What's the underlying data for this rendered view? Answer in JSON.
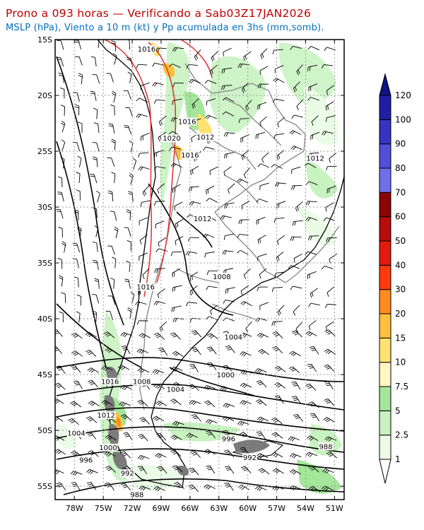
{
  "title": "Prono a 093 horas — Verificando a Sab03Z17JAN2026",
  "subtitle": "MSLP (hPa), Viento a 10 m (kt) y Pp acumulada en 3hs (mm,somb).",
  "axes": {
    "lat_labels": [
      "15S",
      "20S",
      "25S",
      "30S",
      "35S",
      "40S",
      "45S",
      "50S",
      "55S"
    ],
    "lon_labels": [
      "78W",
      "75W",
      "72W",
      "69W",
      "66W",
      "63W",
      "60W",
      "57W",
      "54W",
      "51W"
    ]
  },
  "isobar_labels": [
    {
      "text": "1016",
      "lon": -70.5,
      "lat": -16.0
    },
    {
      "text": "1016",
      "lon": -66.3,
      "lat": -22.5
    },
    {
      "text": "1012",
      "lon": -64.4,
      "lat": -23.9
    },
    {
      "text": "1020",
      "lon": -67.9,
      "lat": -24.0
    },
    {
      "text": "1016",
      "lon": -66.0,
      "lat": -25.5
    },
    {
      "text": "1012",
      "lon": -53.0,
      "lat": -25.8
    },
    {
      "text": "1012",
      "lon": -64.7,
      "lat": -31.2
    },
    {
      "text": "1008",
      "lon": -62.7,
      "lat": -36.4
    },
    {
      "text": "1016",
      "lon": -70.6,
      "lat": -37.3
    },
    {
      "text": "1004",
      "lon": -61.5,
      "lat": -41.8
    },
    {
      "text": "1000",
      "lon": -62.3,
      "lat": -45.2
    },
    {
      "text": "1016",
      "lon": -74.3,
      "lat": -45.8
    },
    {
      "text": "1008",
      "lon": -71.0,
      "lat": -45.8
    },
    {
      "text": "1004",
      "lon": -67.5,
      "lat": -46.5
    },
    {
      "text": "1012",
      "lon": -74.7,
      "lat": -48.8
    },
    {
      "text": "1004",
      "lon": -77.8,
      "lat": -50.4
    },
    {
      "text": "1000",
      "lon": -74.5,
      "lat": -51.7
    },
    {
      "text": "996",
      "lon": -62.0,
      "lat": -50.9
    },
    {
      "text": "996",
      "lon": -76.8,
      "lat": -52.8
    },
    {
      "text": "992",
      "lon": -59.8,
      "lat": -52.6
    },
    {
      "text": "988",
      "lon": -51.9,
      "lat": -51.6
    },
    {
      "text": "992",
      "lon": -72.5,
      "lat": -54.0
    },
    {
      "text": "988",
      "lon": -71.5,
      "lat": -55.9
    }
  ],
  "colorbar": {
    "unit": "mm",
    "levels": [
      "1",
      "2.5",
      "5",
      "7.5",
      "10",
      "15",
      "20",
      "30",
      "40",
      "50",
      "60",
      "70",
      "80",
      "90",
      "100",
      "120"
    ],
    "colors": [
      "#eafbe6",
      "#c8f2c0",
      "#a4e69a",
      "#fff6c2",
      "#ffe270",
      "#ffc13d",
      "#ff8a1e",
      "#ff3a0e",
      "#e41a0e",
      "#b80c0c",
      "#8a0505",
      "#6f6fea",
      "#5050d8",
      "#3434c0",
      "#1f1fa5",
      "#101088"
    ]
  },
  "colors": {
    "title": "#c00000",
    "subtitle": "#0070c0",
    "borders": "#8c8c8c",
    "coast": "#000000",
    "isobar": "#000000",
    "isobar_high": "#e03030",
    "grid": "#999999"
  }
}
